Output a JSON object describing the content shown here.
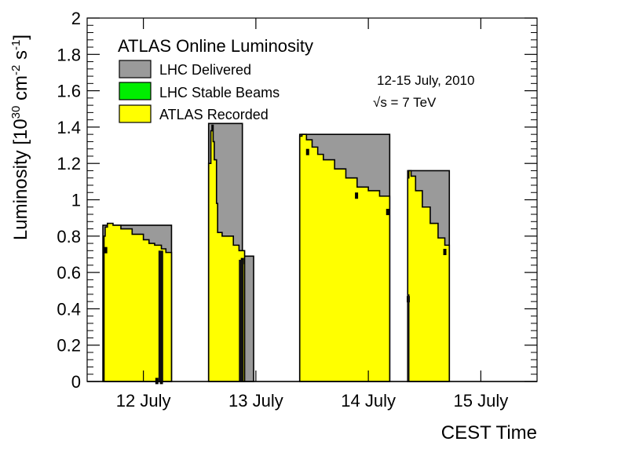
{
  "chart_data": {
    "type": "area",
    "title": "ATLAS Online Luminosity",
    "xlabel": "CEST Time",
    "ylabel_parts": [
      "Luminosity [10",
      "30",
      " cm",
      "-2",
      " s",
      "-1",
      "]"
    ],
    "ylim": [
      0,
      2
    ],
    "yticks": [
      "0",
      "0.2",
      "0.4",
      "0.6",
      "0.8",
      "1",
      "1.2",
      "1.4",
      "1.6",
      "1.8",
      "2"
    ],
    "xlim": [
      12.0,
      16.0
    ],
    "xticks": [
      {
        "label": "12 July",
        "x": 12.5
      },
      {
        "label": "13 July",
        "x": 13.5
      },
      {
        "label": "14 July",
        "x": 14.5
      },
      {
        "label": "15 July",
        "x": 15.5
      }
    ],
    "annotations": [
      "12-15 July, 2010",
      "√s = 7 TeV"
    ],
    "colors": {
      "delivered": "#9a9a9a",
      "stable": "#00ee00",
      "recorded": "#ffff00"
    },
    "series": [
      {
        "name": "LHC Delivered",
        "color": "#9a9a9a",
        "fills": [
          {
            "x": [
              12.14,
              12.18,
              12.75
            ],
            "y": [
              0.86,
              0.86,
              0.69
            ]
          },
          {
            "x": [
              13.08,
              13.38,
              13.48
            ],
            "y": [
              1.42,
              0.69,
              0.57
            ]
          },
          {
            "x": [
              13.89,
              14.69
            ],
            "y": [
              1.36,
              0.97
            ]
          },
          {
            "x": [
              14.85,
              15.22
            ],
            "y": [
              1.16,
              0.74
            ]
          }
        ]
      },
      {
        "name": "LHC Stable Beams",
        "color": "#00ee00",
        "fills": []
      },
      {
        "name": "ATLAS Recorded",
        "color": "#ffff00",
        "fills": [
          {
            "x": [
              12.15,
              12.16,
              12.18,
              12.23,
              12.3,
              12.4,
              12.5,
              12.55,
              12.6,
              12.66,
              12.7,
              12.75
            ],
            "y": [
              0.8,
              0.85,
              0.87,
              0.86,
              0.84,
              0.81,
              0.78,
              0.76,
              0.75,
              0.73,
              0.71,
              0.69
            ]
          },
          {
            "x": [
              13.08,
              13.1,
              13.11,
              13.12,
              13.13,
              13.15,
              13.16,
              13.2,
              13.3,
              13.35,
              13.4
            ],
            "y": [
              1.2,
              1.38,
              1.41,
              1.32,
              1.22,
              0.98,
              0.82,
              0.8,
              0.75,
              0.72,
              0.69
            ]
          },
          {
            "x": [
              13.89,
              13.91,
              13.95,
              14.0,
              14.05,
              14.1,
              14.2,
              14.3,
              14.4,
              14.5,
              14.6,
              14.69
            ],
            "y": [
              1.35,
              1.36,
              1.33,
              1.29,
              1.25,
              1.22,
              1.17,
              1.12,
              1.07,
              1.05,
              1.02,
              0.97
            ]
          },
          {
            "x": [
              14.85,
              14.86,
              14.88,
              14.92,
              14.98,
              15.05,
              15.12,
              15.18,
              15.22
            ],
            "y": [
              1.12,
              1.16,
              1.13,
              1.05,
              0.96,
              0.87,
              0.79,
              0.75,
              0.74
            ]
          }
        ]
      }
    ],
    "notches": [
      {
        "x": 12.165,
        "y": 0.74
      },
      {
        "x": 12.62,
        "y": 0.02
      },
      {
        "x": 12.66,
        "y": 0.02
      },
      {
        "x": 13.38,
        "y": 0.68
      },
      {
        "x": 13.96,
        "y": 1.28
      },
      {
        "x": 14.395,
        "y": 1.04
      },
      {
        "x": 14.672,
        "y": 0.95
      },
      {
        "x": 14.855,
        "y": 0.47
      },
      {
        "x": 15.18,
        "y": 0.73
      }
    ]
  }
}
